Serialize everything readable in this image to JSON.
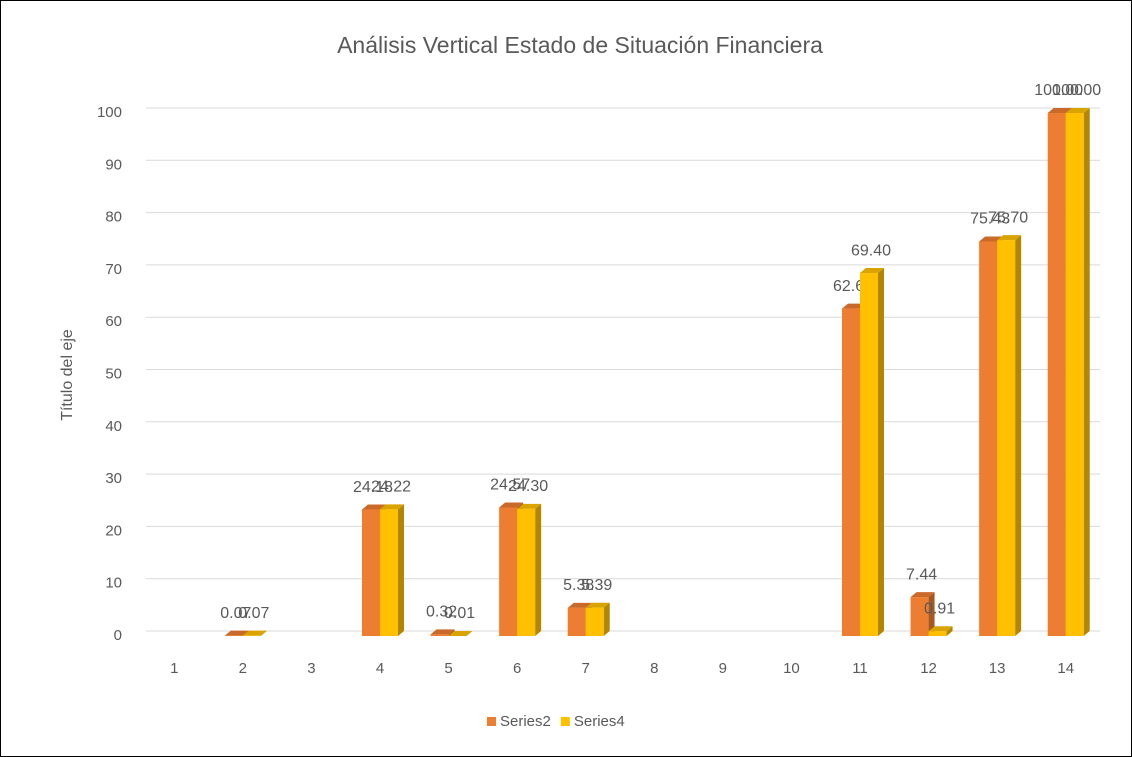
{
  "chart_data": {
    "type": "bar3d",
    "title": "Análisis Vertical Estado de Situación Financiera",
    "y_label": "Título del eje",
    "categories": [
      "1",
      "2",
      "3",
      "4",
      "5",
      "6",
      "7",
      "8",
      "9",
      "10",
      "11",
      "12",
      "13",
      "14"
    ],
    "series": [
      {
        "name": "Series2",
        "color": "#ed7d31",
        "values": [
          null,
          0.07,
          null,
          24.18,
          0.32,
          24.57,
          5.38,
          null,
          null,
          null,
          62.6,
          7.44,
          75.43,
          100
        ],
        "value_labels": [
          null,
          "0.07",
          null,
          "24.18",
          "0.32",
          "24.57",
          "5.38",
          null,
          null,
          null,
          "62.60",
          "7.44",
          "75.43",
          "100.00"
        ]
      },
      {
        "name": "Series4",
        "color": "#ffc000",
        "values": [
          null,
          0.07,
          null,
          24.22,
          0.01,
          24.3,
          5.39,
          null,
          null,
          null,
          69.4,
          0.91,
          75.7,
          100
        ],
        "value_labels": [
          null,
          "0.07",
          null,
          "24.22",
          "0.01",
          "24.30",
          "5.39",
          null,
          null,
          null,
          "69.40",
          "0.91",
          "75.70",
          "100.00"
        ]
      }
    ],
    "ylim": [
      0,
      100
    ],
    "yticks": [
      0,
      10,
      20,
      30,
      40,
      50,
      60,
      70,
      80,
      90,
      100
    ],
    "grid": true,
    "legend": "bottom"
  }
}
